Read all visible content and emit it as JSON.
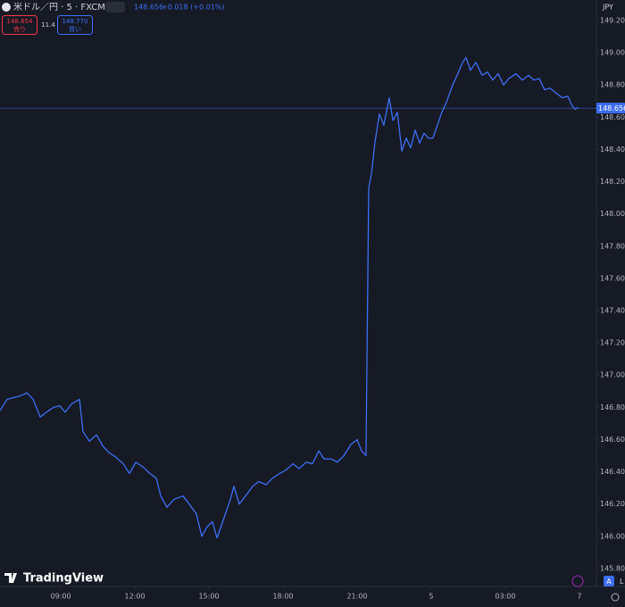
{
  "chart_data": {
    "type": "line",
    "symbol": "米ドル／円 · 5 · FXCM",
    "change": "+0.018 (+0.01%)",
    "sell_price": "148.654",
    "sell_label": "売り",
    "spread": "11.4",
    "buy_price": "148.770",
    "buy_label": "買い",
    "currency": "JPY",
    "brand": "TradingView",
    "corner_labels": [
      "A",
      "L"
    ],
    "last_price": 148.656,
    "x": [
      6.54,
      6.83,
      7.08,
      7.34,
      7.63,
      7.88,
      8.17,
      8.42,
      8.71,
      8.96,
      9.18,
      9.43,
      9.76,
      9.9,
      10.16,
      10.45,
      10.7,
      10.95,
      11.24,
      11.53,
      11.78,
      12.04,
      12.33,
      12.61,
      12.87,
      13.05,
      13.3,
      13.59,
      13.95,
      14.2,
      14.49,
      14.71,
      14.93,
      15.14,
      15.33,
      15.58,
      15.87,
      16.01,
      16.23,
      16.48,
      16.77,
      17.02,
      17.31,
      17.57,
      17.86,
      18.11,
      18.4,
      18.65,
      18.94,
      19.19,
      19.45,
      19.66,
      19.95,
      20.2,
      20.46,
      20.75,
      21.0,
      21.18,
      21.36,
      21.47,
      21.58,
      21.72,
      21.9,
      22.08,
      22.3,
      22.45,
      22.63,
      22.81,
      22.99,
      23.17,
      23.35,
      23.53,
      23.71,
      23.89,
      24.07,
      24.25,
      24.43,
      24.61,
      24.87,
      25.05,
      25.27,
      25.41,
      25.59,
      25.81,
      26.06,
      26.28,
      26.49,
      26.71,
      26.93,
      27.14,
      27.43,
      27.69,
      27.94,
      28.16,
      28.37,
      28.59,
      28.81,
      29.06,
      29.31,
      29.53,
      29.71,
      29.82,
      29.96
    ],
    "series": [
      {
        "name": "USDJPY",
        "color": "#3d6ef5",
        "values": [
          146.78,
          146.85,
          146.86,
          146.87,
          146.89,
          146.85,
          146.74,
          146.77,
          146.8,
          146.81,
          146.77,
          146.82,
          146.85,
          146.65,
          146.59,
          146.63,
          146.56,
          146.52,
          146.49,
          146.45,
          146.39,
          146.46,
          146.43,
          146.39,
          146.36,
          146.25,
          146.18,
          146.23,
          146.25,
          146.2,
          146.14,
          146.0,
          146.06,
          146.09,
          145.99,
          146.1,
          146.23,
          146.31,
          146.2,
          146.25,
          146.31,
          146.34,
          146.32,
          146.36,
          146.39,
          146.41,
          146.45,
          146.42,
          146.46,
          146.45,
          146.53,
          146.48,
          146.48,
          146.46,
          146.5,
          146.57,
          146.6,
          146.53,
          146.5,
          148.16,
          148.25,
          148.44,
          148.62,
          148.55,
          148.72,
          148.58,
          148.63,
          148.39,
          148.47,
          148.41,
          148.52,
          148.44,
          148.5,
          148.47,
          148.47,
          148.55,
          148.63,
          148.69,
          148.8,
          148.86,
          148.94,
          148.97,
          148.89,
          148.94,
          148.86,
          148.88,
          148.83,
          148.87,
          148.8,
          148.84,
          148.87,
          148.83,
          148.86,
          148.83,
          148.84,
          148.77,
          148.78,
          148.75,
          148.72,
          148.73,
          148.67,
          148.65,
          148.66
        ]
      }
    ],
    "xlim": [
      6.54,
      30.69
    ],
    "xticks": [
      {
        "value": 9,
        "label": "09:00"
      },
      {
        "value": 12,
        "label": "12:00"
      },
      {
        "value": 15,
        "label": "15:00"
      },
      {
        "value": 18,
        "label": "18:00"
      },
      {
        "value": 21,
        "label": "21:00"
      },
      {
        "value": 24,
        "label": "5"
      },
      {
        "value": 27,
        "label": "03:00"
      },
      {
        "value": 30,
        "label": "7"
      }
    ],
    "ylim": [
      145.7,
      149.327
    ],
    "yticks": [
      {
        "value": 145.8,
        "label": "145.800"
      },
      {
        "value": 146,
        "label": "146.000"
      },
      {
        "value": 146.2,
        "label": "146.200"
      },
      {
        "value": 146.4,
        "label": "146.400"
      },
      {
        "value": 146.6,
        "label": "146.600"
      },
      {
        "value": 146.8,
        "label": "146.800"
      },
      {
        "value": 147,
        "label": "147.000"
      },
      {
        "value": 147.2,
        "label": "147.200"
      },
      {
        "value": 147.4,
        "label": "147.400"
      },
      {
        "value": 147.6,
        "label": "147.600"
      },
      {
        "value": 147.8,
        "label": "147.800"
      },
      {
        "value": 148,
        "label": "148.000"
      },
      {
        "value": 148.2,
        "label": "148.200"
      },
      {
        "value": 148.4,
        "label": "148.400"
      },
      {
        "value": 148.6,
        "label": "148.600"
      },
      {
        "value": 148.8,
        "label": "148.800"
      },
      {
        "value": 149,
        "label": "149.000"
      },
      {
        "value": 149.2,
        "label": "149.200"
      }
    ],
    "grid": false
  }
}
